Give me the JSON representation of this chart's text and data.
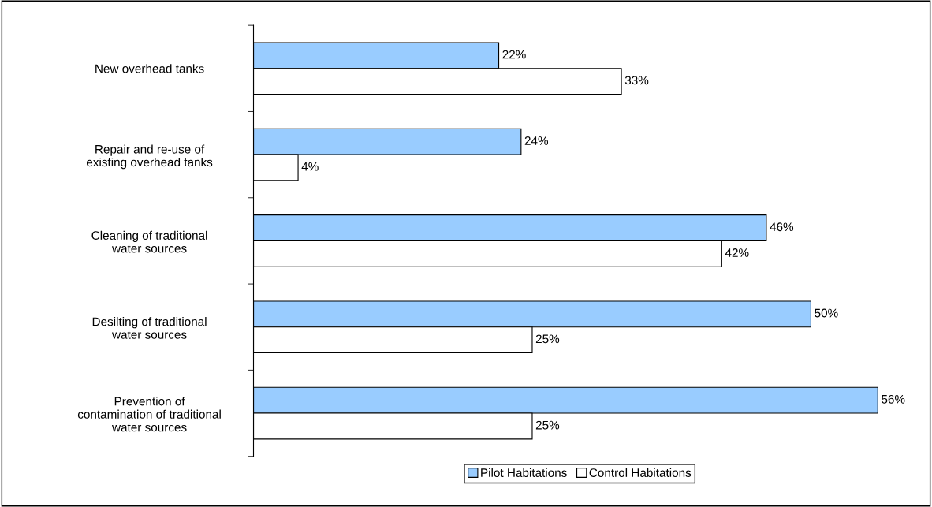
{
  "chart_data": {
    "type": "bar",
    "orientation": "horizontal",
    "categories": [
      "New overhead tanks",
      "Repair and re-use of\nexisting overhead tanks",
      "Cleaning of traditional\nwater sources",
      "Desilting of traditional\nwater sources",
      "Prevention of\ncontamination of traditional\nwater sources"
    ],
    "series": [
      {
        "name": "Pilot Habitations",
        "color": "#99ccff",
        "values": [
          22,
          24,
          46,
          50,
          56
        ],
        "value_labels": [
          "22%",
          "24%",
          "46%",
          "50%",
          "56%"
        ]
      },
      {
        "name": "Control Habitations",
        "color": "#ffffff",
        "values": [
          33,
          4,
          42,
          25,
          25
        ],
        "value_labels": [
          "33%",
          "4%",
          "42%",
          "25%",
          "25%"
        ]
      }
    ],
    "legend": "bottom",
    "grid": false
  }
}
